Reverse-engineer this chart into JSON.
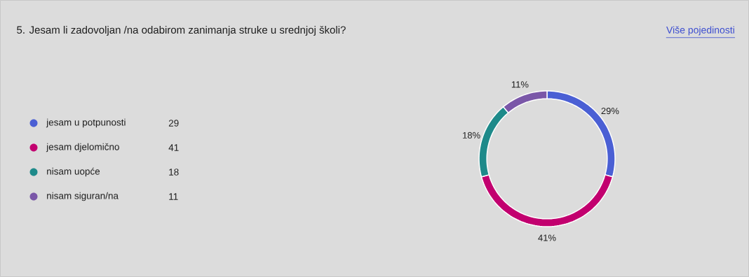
{
  "chart_data": {
    "type": "donut",
    "title": "5. Jesam li zadovoljan /na odabirom zanimanja struke u srednjoj školi?",
    "categories": [
      "jesam u potpunosti",
      "jesam djelomično",
      "nisam uopće",
      "nisam siguran/na"
    ],
    "values": [
      29,
      41,
      18,
      11
    ],
    "colors": [
      "#4a5fd4",
      "#c2006f",
      "#1e8a8a",
      "#7a57a8"
    ],
    "value_labels": [
      "29%",
      "41%",
      "18%",
      "11%"
    ],
    "legend": "left",
    "annotations": [
      "Više pojedinosti",
      "29",
      "41",
      "18",
      "11"
    ]
  }
}
